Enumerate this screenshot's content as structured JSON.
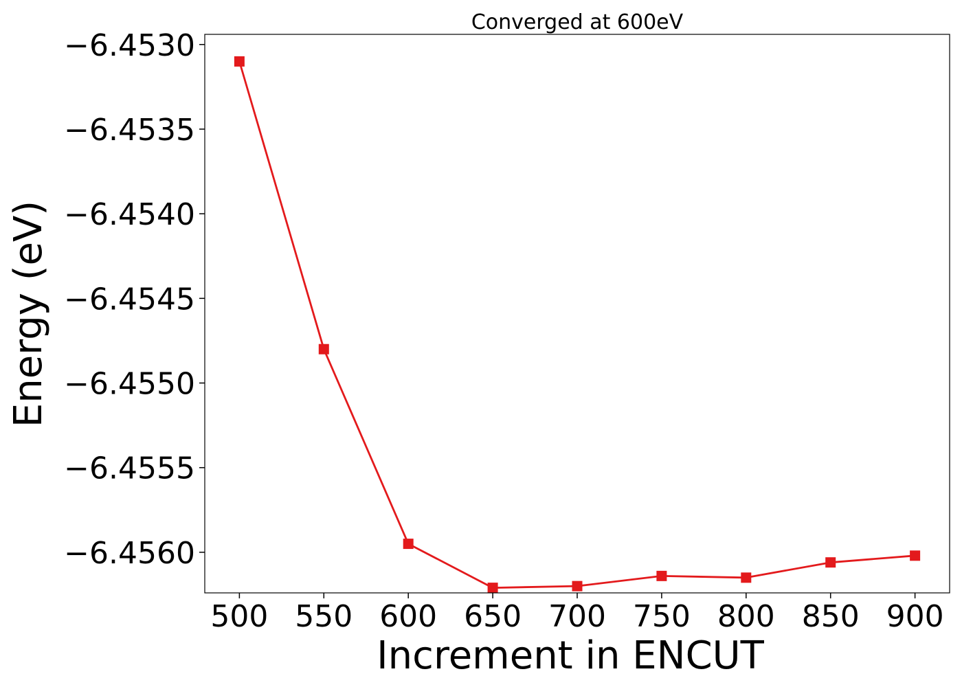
{
  "chart_data": {
    "type": "line",
    "title": "Converged at 600eV",
    "xlabel": "Increment in ENCUT",
    "ylabel": "Energy (eV)",
    "x": [
      500,
      550,
      600,
      650,
      700,
      750,
      800,
      850,
      900
    ],
    "series": [
      {
        "values": [
          -6.4531,
          -6.4548,
          -6.45595,
          -6.45621,
          -6.4562,
          -6.45614,
          -6.45615,
          -6.45606,
          -6.45602
        ],
        "color": "#e31a1c",
        "marker": "square"
      }
    ],
    "xticks": [
      500,
      550,
      600,
      650,
      700,
      750,
      800,
      850,
      900
    ],
    "xtick_labels": [
      "500",
      "550",
      "600",
      "650",
      "700",
      "750",
      "800",
      "850",
      "900"
    ],
    "yticks": [
      -6.453,
      -6.4535,
      -6.454,
      -6.4545,
      -6.455,
      -6.4555,
      -6.456
    ],
    "ytick_labels": [
      "−6.4530",
      "−6.4535",
      "−6.4540",
      "−6.4545",
      "−6.4550",
      "−6.4555",
      "−6.4560"
    ],
    "xlim": [
      479.5,
      920.5
    ],
    "ylim": [
      -6.45624,
      -6.45294
    ],
    "grid": false,
    "legend": false
  }
}
